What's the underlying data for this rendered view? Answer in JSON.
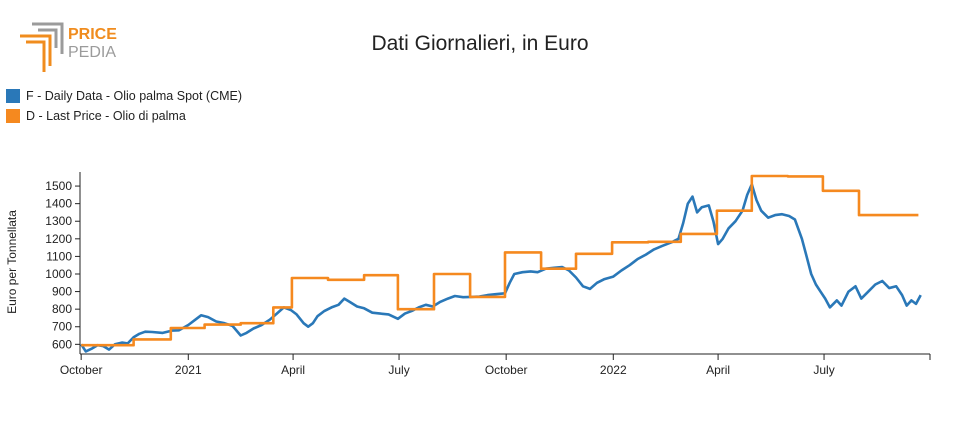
{
  "brand": {
    "line1": "PRICE",
    "line2": "PEDIA",
    "color_orange": "#f08c1e",
    "color_grey": "#9b9b9b"
  },
  "chart_data": {
    "type": "line",
    "title": "Dati Giornalieri, in Euro",
    "ylabel": "Euro per Tonnellata",
    "xlabel": "",
    "ylim": [
      545,
      1580
    ],
    "xlim": [
      "2020-09-30",
      "2022-09-30"
    ],
    "yticks": [
      600,
      700,
      800,
      900,
      1000,
      1100,
      1200,
      1300,
      1400,
      1500
    ],
    "xticks": [
      {
        "date": "2020-10-01",
        "label": "October"
      },
      {
        "date": "2021-01-01",
        "label": "2021"
      },
      {
        "date": "2021-04-01",
        "label": "April"
      },
      {
        "date": "2021-07-01",
        "label": "July"
      },
      {
        "date": "2021-10-01",
        "label": "October"
      },
      {
        "date": "2022-01-01",
        "label": "2022"
      },
      {
        "date": "2022-04-01",
        "label": "April"
      },
      {
        "date": "2022-07-01",
        "label": "July"
      }
    ],
    "legend_position": "top-left",
    "series": [
      {
        "name": "F - Daily Data - Olio palma Spot (CME)",
        "color": "#2a78b8",
        "step": false,
        "points": [
          [
            "2020-10-01",
            600
          ],
          [
            "2020-10-05",
            560
          ],
          [
            "2020-10-10",
            575
          ],
          [
            "2020-10-15",
            595
          ],
          [
            "2020-10-20",
            590
          ],
          [
            "2020-10-25",
            570
          ],
          [
            "2020-10-30",
            600
          ],
          [
            "2020-11-05",
            610
          ],
          [
            "2020-11-10",
            605
          ],
          [
            "2020-11-15",
            640
          ],
          [
            "2020-11-20",
            660
          ],
          [
            "2020-11-25",
            672
          ],
          [
            "2020-12-01",
            670
          ],
          [
            "2020-12-10",
            665
          ],
          [
            "2020-12-18",
            678
          ],
          [
            "2020-12-24",
            680
          ],
          [
            "2021-01-01",
            710
          ],
          [
            "2021-01-07",
            740
          ],
          [
            "2021-01-12",
            765
          ],
          [
            "2021-01-18",
            755
          ],
          [
            "2021-01-25",
            730
          ],
          [
            "2021-02-01",
            720
          ],
          [
            "2021-02-08",
            705
          ],
          [
            "2021-02-15",
            650
          ],
          [
            "2021-02-20",
            665
          ],
          [
            "2021-02-26",
            690
          ],
          [
            "2021-03-05",
            710
          ],
          [
            "2021-03-12",
            740
          ],
          [
            "2021-03-18",
            775
          ],
          [
            "2021-03-24",
            810
          ],
          [
            "2021-03-30",
            795
          ],
          [
            "2021-04-04",
            770
          ],
          [
            "2021-04-10",
            720
          ],
          [
            "2021-04-14",
            700
          ],
          [
            "2021-04-18",
            720
          ],
          [
            "2021-04-22",
            760
          ],
          [
            "2021-04-28",
            790
          ],
          [
            "2021-05-04",
            810
          ],
          [
            "2021-05-10",
            825
          ],
          [
            "2021-05-15",
            860
          ],
          [
            "2021-05-20",
            840
          ],
          [
            "2021-05-26",
            815
          ],
          [
            "2021-06-01",
            805
          ],
          [
            "2021-06-08",
            780
          ],
          [
            "2021-06-15",
            775
          ],
          [
            "2021-06-22",
            770
          ],
          [
            "2021-06-30",
            745
          ],
          [
            "2021-07-06",
            775
          ],
          [
            "2021-07-12",
            790
          ],
          [
            "2021-07-18",
            810
          ],
          [
            "2021-07-24",
            825
          ],
          [
            "2021-07-30",
            815
          ],
          [
            "2021-08-05",
            840
          ],
          [
            "2021-08-12",
            860
          ],
          [
            "2021-08-18",
            875
          ],
          [
            "2021-08-25",
            868
          ],
          [
            "2021-09-01",
            870
          ],
          [
            "2021-09-08",
            872
          ],
          [
            "2021-09-15",
            880
          ],
          [
            "2021-09-22",
            885
          ],
          [
            "2021-09-30",
            890
          ],
          [
            "2021-10-04",
            950
          ],
          [
            "2021-10-08",
            1000
          ],
          [
            "2021-10-15",
            1010
          ],
          [
            "2021-10-22",
            1015
          ],
          [
            "2021-10-28",
            1010
          ],
          [
            "2021-11-04",
            1030
          ],
          [
            "2021-11-11",
            1035
          ],
          [
            "2021-11-18",
            1040
          ],
          [
            "2021-11-24",
            1020
          ],
          [
            "2021-11-30",
            980
          ],
          [
            "2021-12-06",
            930
          ],
          [
            "2021-12-12",
            915
          ],
          [
            "2021-12-18",
            950
          ],
          [
            "2021-12-24",
            970
          ],
          [
            "2022-01-01",
            985
          ],
          [
            "2022-01-08",
            1020
          ],
          [
            "2022-01-15",
            1050
          ],
          [
            "2022-01-22",
            1085
          ],
          [
            "2022-01-29",
            1110
          ],
          [
            "2022-02-05",
            1140
          ],
          [
            "2022-02-12",
            1160
          ],
          [
            "2022-02-20",
            1180
          ],
          [
            "2022-02-26",
            1200
          ],
          [
            "2022-03-02",
            1290
          ],
          [
            "2022-03-06",
            1400
          ],
          [
            "2022-03-10",
            1440
          ],
          [
            "2022-03-14",
            1350
          ],
          [
            "2022-03-18",
            1380
          ],
          [
            "2022-03-24",
            1390
          ],
          [
            "2022-03-28",
            1300
          ],
          [
            "2022-04-01",
            1170
          ],
          [
            "2022-04-05",
            1200
          ],
          [
            "2022-04-10",
            1260
          ],
          [
            "2022-04-16",
            1300
          ],
          [
            "2022-04-22",
            1360
          ],
          [
            "2022-04-26",
            1450
          ],
          [
            "2022-04-30",
            1510
          ],
          [
            "2022-05-04",
            1420
          ],
          [
            "2022-05-08",
            1360
          ],
          [
            "2022-05-14",
            1320
          ],
          [
            "2022-05-20",
            1335
          ],
          [
            "2022-05-26",
            1340
          ],
          [
            "2022-06-01",
            1330
          ],
          [
            "2022-06-06",
            1310
          ],
          [
            "2022-06-12",
            1200
          ],
          [
            "2022-06-16",
            1100
          ],
          [
            "2022-06-20",
            1000
          ],
          [
            "2022-06-24",
            940
          ],
          [
            "2022-06-28",
            900
          ],
          [
            "2022-07-02",
            860
          ],
          [
            "2022-07-06",
            810
          ],
          [
            "2022-07-12",
            850
          ],
          [
            "2022-07-16",
            820
          ],
          [
            "2022-07-22",
            900
          ],
          [
            "2022-07-28",
            930
          ],
          [
            "2022-08-02",
            860
          ],
          [
            "2022-08-08",
            900
          ],
          [
            "2022-08-14",
            940
          ],
          [
            "2022-08-20",
            960
          ],
          [
            "2022-08-26",
            920
          ],
          [
            "2022-09-01",
            930
          ],
          [
            "2022-09-06",
            880
          ],
          [
            "2022-09-10",
            820
          ],
          [
            "2022-09-14",
            850
          ],
          [
            "2022-09-18",
            830
          ],
          [
            "2022-09-22",
            880
          ]
        ]
      },
      {
        "name": "D - Last Price - Olio di palma",
        "color": "#f5891f",
        "step": true,
        "points": [
          [
            "2020-10-01",
            595
          ],
          [
            "2020-11-15",
            628
          ],
          [
            "2020-12-17",
            693
          ],
          [
            "2021-01-15",
            712
          ],
          [
            "2021-02-15",
            720
          ],
          [
            "2021-03-15",
            810
          ],
          [
            "2021-03-31",
            977
          ],
          [
            "2021-05-01",
            967
          ],
          [
            "2021-06-01",
            993
          ],
          [
            "2021-06-30",
            800
          ],
          [
            "2021-07-31",
            1000
          ],
          [
            "2021-08-31",
            870
          ],
          [
            "2021-09-30",
            1123
          ],
          [
            "2021-10-31",
            1030
          ],
          [
            "2021-11-30",
            1115
          ],
          [
            "2021-12-31",
            1180
          ],
          [
            "2022-01-31",
            1183
          ],
          [
            "2022-02-28",
            1228
          ],
          [
            "2022-03-31",
            1360
          ],
          [
            "2022-04-30",
            1557
          ],
          [
            "2022-05-31",
            1555
          ],
          [
            "2022-06-30",
            1473
          ],
          [
            "2022-07-31",
            1335
          ],
          [
            "2022-08-31",
            1335
          ]
        ]
      }
    ]
  }
}
